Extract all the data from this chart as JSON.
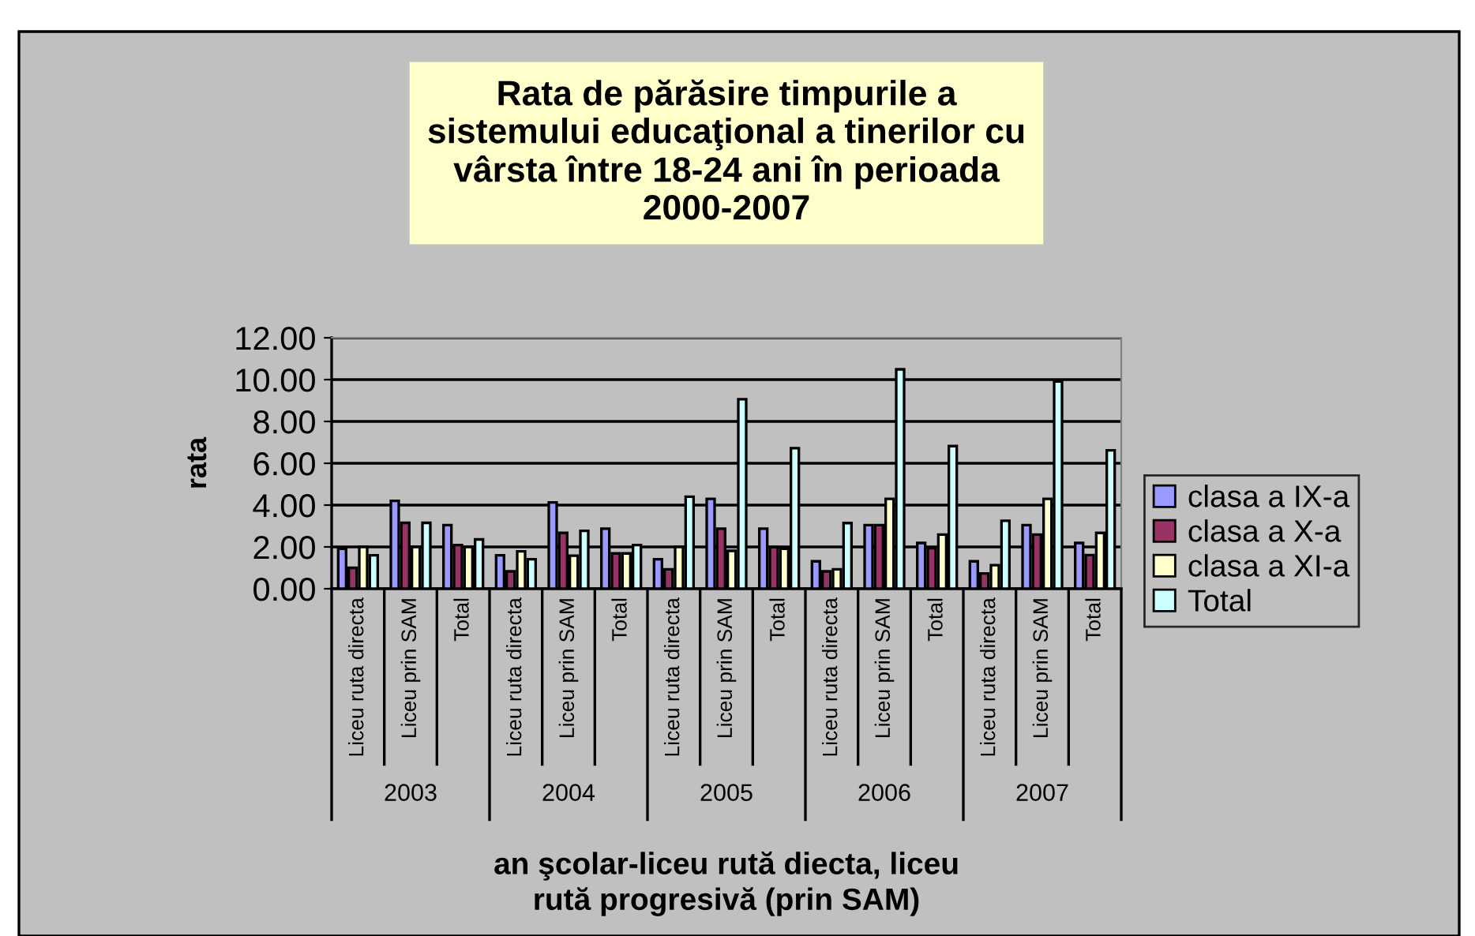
{
  "chart_data": {
    "type": "bar",
    "title": "Rata de părăsire timpurile a\nsistemului educaţional a tinerilor cu\nvârsta între 18-24 ani în perioada\n2000-2007",
    "xlabel": "an şcolar-liceu rută diecta, liceu\nrută progresivă (prin SAM)",
    "ylabel": "rata",
    "categories": [
      "Liceu ruta directa",
      "Liceu prin SAM",
      "Total",
      "Liceu ruta directa",
      "Liceu prin SAM",
      "Total",
      "Liceu ruta directa",
      "Liceu prin SAM",
      "Total",
      "Liceu ruta directa",
      "Liceu prin SAM",
      "Total",
      "Liceu ruta directa",
      "Liceu prin SAM",
      "Total"
    ],
    "annotations": [
      "2003",
      "2004",
      "2005",
      "2006",
      "2007"
    ],
    "series": [
      {
        "name": "clasa a IX-a",
        "color": "#9999ff",
        "values": [
          1.91,
          4.2,
          3.04,
          1.6,
          4.13,
          2.87,
          1.41,
          4.3,
          2.87,
          1.31,
          3.04,
          2.19,
          1.31,
          3.04,
          2.19
        ]
      },
      {
        "name": "clasa a X-a",
        "color": "#993366",
        "values": [
          1.0,
          3.15,
          2.09,
          0.83,
          2.67,
          1.69,
          0.93,
          2.87,
          1.99,
          0.83,
          3.04,
          1.94,
          0.73,
          2.59,
          1.61
        ]
      },
      {
        "name": "clasa a XI-a",
        "color": "#ffffcc",
        "values": [
          2.0,
          2.0,
          2.0,
          1.79,
          1.58,
          1.69,
          2.0,
          1.81,
          1.91,
          0.93,
          4.3,
          2.59,
          1.13,
          4.3,
          2.67
        ]
      },
      {
        "name": "Total",
        "color": "#ccffff",
        "values": [
          1.6,
          3.15,
          2.36,
          1.41,
          2.77,
          2.09,
          4.4,
          9.06,
          6.72,
          3.14,
          10.49,
          6.82,
          3.25,
          9.91,
          6.62
        ]
      }
    ],
    "ylim": [
      0,
      12
    ],
    "yticks": [
      {
        "value": 0,
        "label": "0.00"
      },
      {
        "value": 2,
        "label": "2.00"
      },
      {
        "value": 4,
        "label": "4.00"
      },
      {
        "value": 6,
        "label": "6.00"
      },
      {
        "value": 8,
        "label": "8.00"
      },
      {
        "value": 10,
        "label": "10.00"
      },
      {
        "value": 12,
        "label": "12.00"
      }
    ],
    "grid": "y",
    "legend": "right"
  }
}
